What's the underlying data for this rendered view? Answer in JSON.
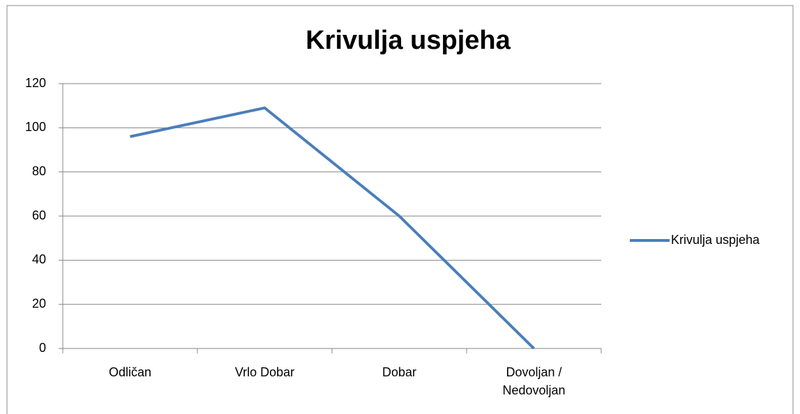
{
  "chart_data": {
    "type": "line",
    "title": "Krivulja uspjeha",
    "categories": [
      "Odličan",
      "Vrlo Dobar",
      "Dobar",
      "Dovoljan / Nedovoljan"
    ],
    "series": [
      {
        "name": "Krivulja uspjeha",
        "color": "#4a7ebb",
        "values": [
          96,
          109,
          60,
          0
        ]
      }
    ],
    "ylim": [
      0,
      120
    ],
    "yticks": [
      0,
      20,
      40,
      60,
      80,
      100,
      120
    ],
    "grid": true,
    "legend": "right"
  }
}
